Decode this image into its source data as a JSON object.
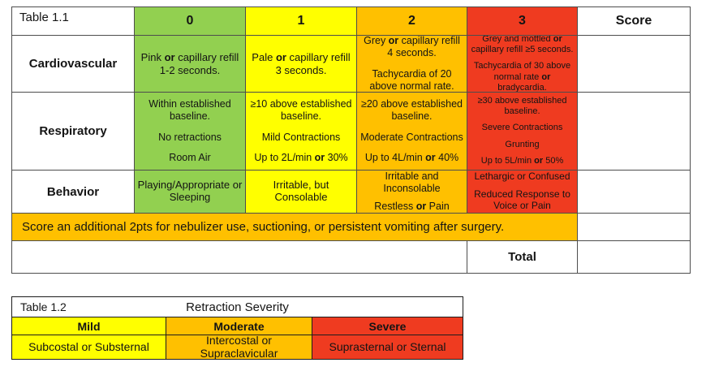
{
  "colors": {
    "green": "#92D050",
    "yellow": "#FFFF00",
    "orange": "#FFC000",
    "red": "#EF3B20"
  },
  "table1": {
    "title": "Table 1.1",
    "headers": [
      "0",
      "1",
      "2",
      "3",
      "Score"
    ],
    "rows": [
      {
        "label": "Cardiovascular",
        "cells": [
          "Pink **or** capillary refill 1-2 seconds.",
          "Pale **or** capillary refill 3 seconds.",
          "Grey **or** capillary refill 4 seconds.\n\nTachycardia of 20 above normal rate.",
          "Grey and mottled **or** capillary refill ≥5 seconds.\n\nTachycardia of 30 above normal rate **or** bradycardia."
        ]
      },
      {
        "label": "Respiratory",
        "cells": [
          "Within established baseline.\n\nNo retractions\n\nRoom Air",
          "≥10 above established baseline.\n\nMild Contractions\n\nUp to 2L/min **or** 30%",
          "≥20 above established baseline.\n\nModerate Contractions\n\nUp to 4L/min **or** 40%",
          "≥30 above established baseline.\n\nSevere Contractions\n\nGrunting\n\nUp to 5L/min **or** 50%"
        ]
      },
      {
        "label": "Behavior",
        "cells": [
          "Playing/Appropriate or Sleeping",
          "Irritable, but Consolable",
          "Irritable and Inconsolable\n\nRestless **or** Pain",
          "Lethargic or Confused\n\nReduced Response to Voice or Pain"
        ]
      }
    ],
    "banner": "Score an additional 2pts for nebulizer use, suctioning, or persistent vomiting after surgery.",
    "total_label": "Total"
  },
  "table2": {
    "title": "Table 1.2",
    "heading": "Retraction Severity",
    "columns": [
      {
        "label": "Mild",
        "value": "Subcostal or Substernal"
      },
      {
        "label": "Moderate",
        "value": "Intercostal or Supraclavicular"
      },
      {
        "label": "Severe",
        "value": "Suprasternal or Sternal"
      }
    ]
  }
}
